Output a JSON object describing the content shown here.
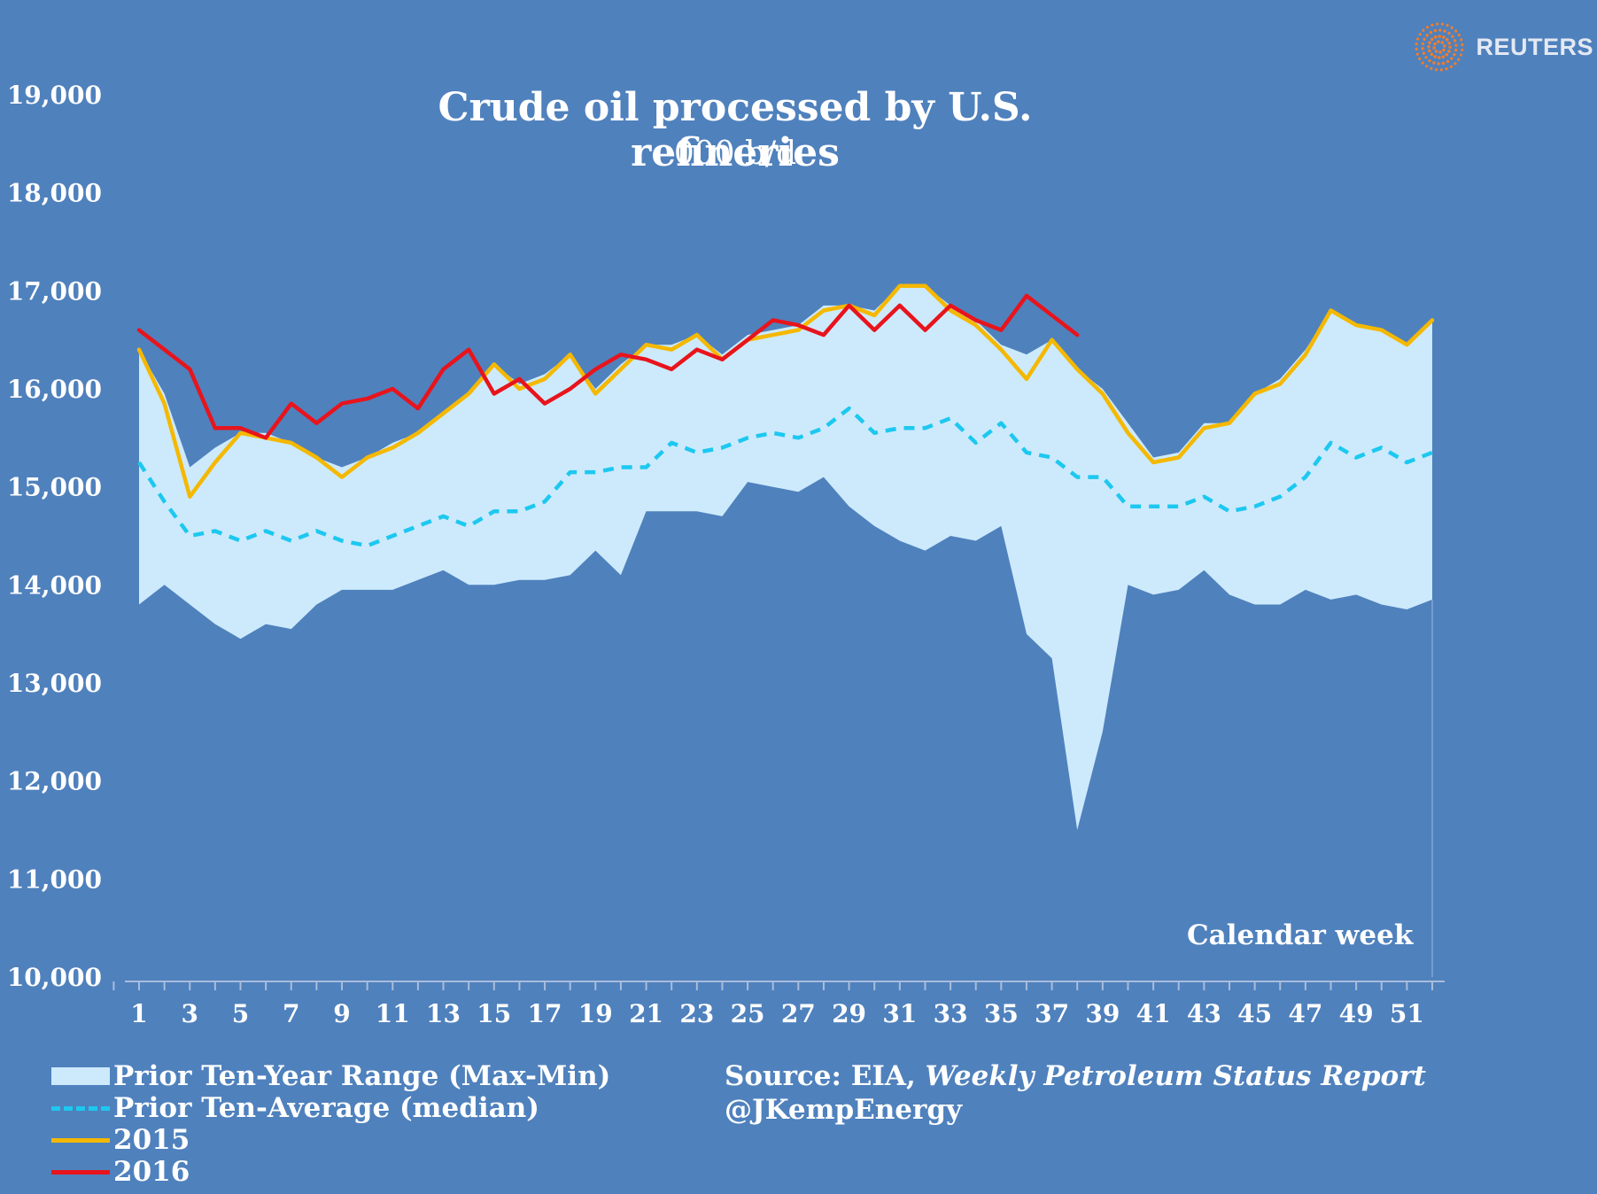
{
  "brand": {
    "name": "REUTERS"
  },
  "chart_data": {
    "type": "line",
    "title": "Crude oil processed by U.S. refineries",
    "subtitle": "000 b/d",
    "xlabel": "Calendar week",
    "ylabel": "",
    "ylim": [
      10000,
      19000
    ],
    "yticks": [
      "10,000",
      "11,000",
      "12,000",
      "13,000",
      "14,000",
      "15,000",
      "16,000",
      "17,000",
      "18,000",
      "19,000"
    ],
    "xtick_labels": [
      "1",
      "3",
      "5",
      "7",
      "9",
      "11",
      "13",
      "15",
      "17",
      "19",
      "21",
      "23",
      "25",
      "27",
      "29",
      "31",
      "33",
      "35",
      "37",
      "39",
      "41",
      "43",
      "45",
      "47",
      "49",
      "51"
    ],
    "x_range": [
      1,
      52
    ],
    "weeks": [
      1,
      2,
      3,
      4,
      5,
      6,
      7,
      8,
      9,
      10,
      11,
      12,
      13,
      14,
      15,
      16,
      17,
      18,
      19,
      20,
      21,
      22,
      23,
      24,
      25,
      26,
      27,
      28,
      29,
      30,
      31,
      32,
      33,
      34,
      35,
      36,
      37,
      38,
      39,
      40,
      41,
      42,
      43,
      44,
      45,
      46,
      47,
      48,
      49,
      50,
      51,
      52
    ],
    "series": [
      {
        "name": "Prior Ten-Year Range (Max-Min)",
        "type": "range",
        "color": "#cdeafc",
        "max": [
          16400,
          15950,
          15200,
          15400,
          15550,
          15550,
          15450,
          15300,
          15200,
          15300,
          15450,
          15550,
          15750,
          15950,
          16250,
          16050,
          16150,
          16350,
          16000,
          16250,
          16450,
          16450,
          16550,
          16350,
          16550,
          16600,
          16650,
          16850,
          16850,
          16800,
          17050,
          17050,
          16850,
          16700,
          16450,
          16350,
          16500,
          16200,
          16000,
          15650,
          15300,
          15350,
          15650,
          15650,
          15950,
          16100,
          16400,
          16800,
          16650,
          16600,
          16450,
          16700
        ],
        "min": [
          13800,
          14000,
          13800,
          13600,
          13450,
          13600,
          13550,
          13800,
          13950,
          13950,
          13950,
          14050,
          14150,
          14000,
          14000,
          14050,
          14050,
          14100,
          14350,
          14100,
          14750,
          14750,
          14750,
          14700,
          15050,
          15000,
          14950,
          15100,
          14800,
          14600,
          14450,
          14350,
          14500,
          14450,
          14600,
          13500,
          13250,
          11500,
          12500,
          14000,
          13900,
          13950,
          14150,
          13900,
          13800,
          13800,
          13950,
          13850,
          13900,
          13800,
          13750,
          13850
        ]
      },
      {
        "name": "Prior Ten-Average (median)",
        "type": "line",
        "style": "dashed",
        "color": "#1dc8f0",
        "values": [
          15250,
          14850,
          14500,
          14550,
          14450,
          14550,
          14450,
          14550,
          14450,
          14400,
          14500,
          14600,
          14700,
          14600,
          14750,
          14750,
          14850,
          15150,
          15150,
          15200,
          15200,
          15450,
          15350,
          15400,
          15500,
          15550,
          15500,
          15600,
          15800,
          15550,
          15600,
          15600,
          15700,
          15450,
          15650,
          15350,
          15300,
          15100,
          15100,
          14800,
          14800,
          14800,
          14900,
          14750,
          14800,
          14900,
          15100,
          15450,
          15300,
          15400,
          15250,
          15350
        ]
      },
      {
        "name": "2015",
        "type": "line",
        "color": "#f5b800",
        "values": [
          16400,
          15850,
          14900,
          15250,
          15550,
          15500,
          15450,
          15300,
          15100,
          15300,
          15400,
          15550,
          15750,
          15950,
          16250,
          16000,
          16100,
          16350,
          15950,
          16200,
          16450,
          16400,
          16550,
          16300,
          16500,
          16550,
          16600,
          16800,
          16850,
          16750,
          17050,
          17050,
          16800,
          16650,
          16400,
          16100,
          16500,
          16200,
          15950,
          15550,
          15250,
          15300,
          15600,
          15650,
          15950,
          16050,
          16350,
          16800,
          16650,
          16600,
          16450,
          16700
        ]
      },
      {
        "name": "2016",
        "type": "line",
        "color": "#e8141c",
        "values": [
          16600,
          16400,
          16200,
          15600,
          15600,
          15500,
          15850,
          15650,
          15850,
          15900,
          16000,
          15800,
          16200,
          16400,
          15950,
          16100,
          15850,
          16000,
          16200,
          16350,
          16300,
          16200,
          16400,
          16300,
          16500,
          16700,
          16650,
          16550,
          16850,
          16600,
          16850,
          16600,
          16850,
          16700,
          16600,
          16950,
          16750,
          16550
        ]
      }
    ],
    "legend": [
      "Prior Ten-Year Range (Max-Min)",
      "Prior Ten-Average (median)",
      "2015",
      "2016"
    ],
    "legend_placement": "bottom-left",
    "grid": false
  },
  "source": {
    "prefix": "Source: EIA,",
    "report": "Weekly Petroleum Status Report",
    "handle": "@JKempEnergy"
  }
}
